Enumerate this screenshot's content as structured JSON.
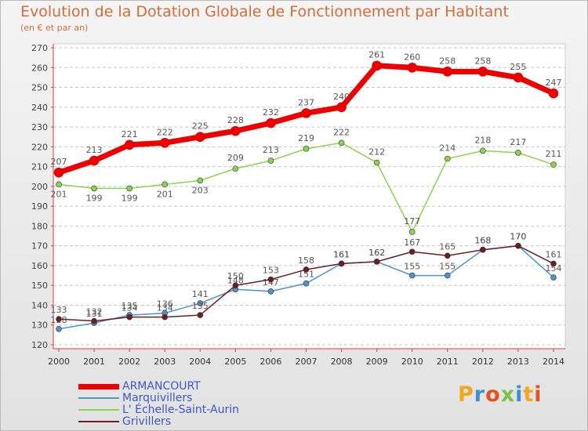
{
  "title": "Evolution de la Dotation Globale de Fonctionnement par Habitant",
  "subtitle": "(en € et par an)",
  "brand": {
    "letters": [
      "P",
      "r",
      "o",
      "x",
      "i",
      "t",
      "i"
    ],
    "colors": [
      "#f2a81d",
      "#3a8fd6",
      "#e2531f",
      "#7cc243",
      "#3a8fd6",
      "#f2a81d",
      "#e2531f"
    ]
  },
  "chart_data": {
    "type": "line",
    "title": "Evolution de la Dotation Globale de Fonctionnement par Habitant",
    "subtitle": "(en € et par an)",
    "x": [
      "2000",
      "2001",
      "2002",
      "2003",
      "2004",
      "2005",
      "2006",
      "2007",
      "2008",
      "2009",
      "2010",
      "2011",
      "2012",
      "2013",
      "2014"
    ],
    "ylim": [
      120,
      270
    ],
    "yticks": [
      120,
      130,
      140,
      150,
      160,
      170,
      180,
      190,
      200,
      210,
      220,
      230,
      240,
      250,
      260,
      270
    ],
    "grid": "horizontal-dashed",
    "legend_position": "bottom-left",
    "series": [
      {
        "name": "ARMANCOURT",
        "color": "#ee0000",
        "values": [
          207,
          213,
          221,
          222,
          225,
          228,
          232,
          237,
          240,
          261,
          260,
          258,
          258,
          255,
          247
        ]
      },
      {
        "name": "Marquivillers",
        "color": "#4f93cb",
        "values": [
          128,
          131,
          135,
          136,
          141,
          148,
          147,
          151,
          161,
          162,
          155,
          155,
          168,
          170,
          154
        ]
      },
      {
        "name": "L' Échelle-Saint-Aurin",
        "color": "#8bd44f",
        "values": [
          201,
          199,
          199,
          201,
          203,
          209,
          213,
          219,
          222,
          212,
          177,
          214,
          218,
          217,
          211
        ]
      },
      {
        "name": "Grivillers",
        "color": "#6b1f24",
        "values": [
          133,
          132,
          134,
          134,
          135,
          150,
          153,
          158,
          161,
          162,
          167,
          165,
          168,
          170,
          161
        ]
      }
    ]
  }
}
